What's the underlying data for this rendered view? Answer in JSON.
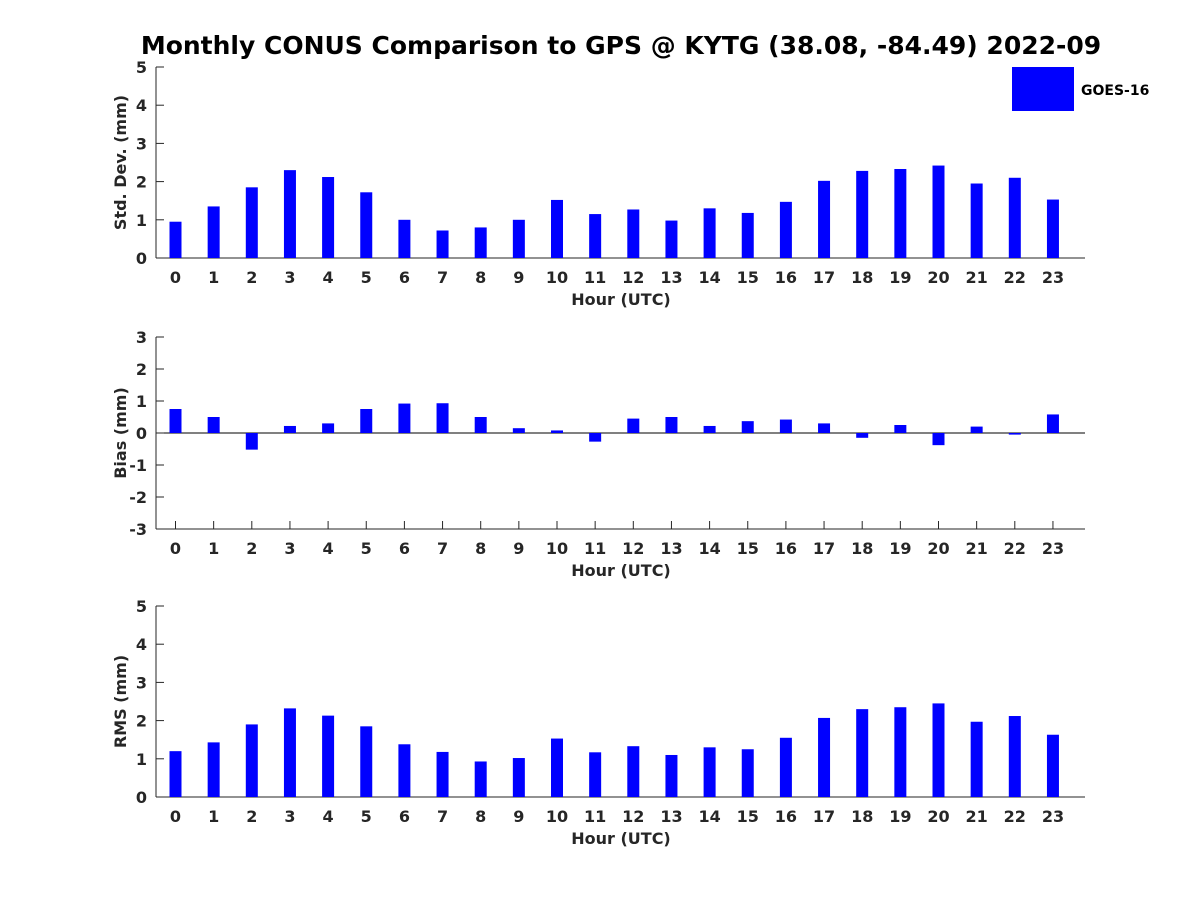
{
  "title": "Monthly CONUS Comparison to GPS @ KYTG (38.08, -84.49) 2022-09",
  "legend": {
    "label": "GOES-16",
    "color": "#0000ff",
    "position": "top-right"
  },
  "bar_color": "#0000ff",
  "chart_data": [
    {
      "type": "bar",
      "categories": [
        "0",
        "1",
        "2",
        "3",
        "4",
        "5",
        "6",
        "7",
        "8",
        "9",
        "10",
        "11",
        "12",
        "13",
        "14",
        "15",
        "16",
        "17",
        "18",
        "19",
        "20",
        "21",
        "22",
        "23"
      ],
      "series": [
        {
          "name": "GOES-16",
          "values": [
            0.95,
            1.35,
            1.85,
            2.3,
            2.12,
            1.72,
            1.0,
            0.72,
            0.8,
            1.0,
            1.52,
            1.15,
            1.27,
            0.98,
            1.3,
            1.18,
            1.47,
            2.02,
            2.28,
            2.33,
            2.42,
            1.95,
            2.1,
            1.53
          ]
        }
      ],
      "xlabel": "Hour (UTC)",
      "ylabel": "Std. Dev. (mm)",
      "ylim": [
        0,
        5
      ],
      "yticks": [
        "0",
        "1",
        "2",
        "3",
        "4",
        "5"
      ]
    },
    {
      "type": "bar",
      "categories": [
        "0",
        "1",
        "2",
        "3",
        "4",
        "5",
        "6",
        "7",
        "8",
        "9",
        "10",
        "11",
        "12",
        "13",
        "14",
        "15",
        "16",
        "17",
        "18",
        "19",
        "20",
        "21",
        "22",
        "23"
      ],
      "series": [
        {
          "name": "GOES-16",
          "values": [
            0.75,
            0.5,
            -0.52,
            0.22,
            0.3,
            0.75,
            0.92,
            0.93,
            0.5,
            0.15,
            0.08,
            -0.27,
            0.45,
            0.5,
            0.22,
            0.37,
            0.42,
            0.3,
            -0.15,
            0.25,
            -0.38,
            0.2,
            -0.05,
            0.58
          ]
        }
      ],
      "xlabel": "Hour (UTC)",
      "ylabel": "Bias (mm)",
      "ylim": [
        -3,
        3
      ],
      "yticks": [
        "-3",
        "-2",
        "-1",
        "0",
        "1",
        "2",
        "3"
      ]
    },
    {
      "type": "bar",
      "categories": [
        "0",
        "1",
        "2",
        "3",
        "4",
        "5",
        "6",
        "7",
        "8",
        "9",
        "10",
        "11",
        "12",
        "13",
        "14",
        "15",
        "16",
        "17",
        "18",
        "19",
        "20",
        "21",
        "22",
        "23"
      ],
      "series": [
        {
          "name": "GOES-16",
          "values": [
            1.2,
            1.43,
            1.9,
            2.32,
            2.13,
            1.85,
            1.38,
            1.18,
            0.93,
            1.02,
            1.53,
            1.17,
            1.33,
            1.1,
            1.3,
            1.25,
            1.55,
            2.07,
            2.3,
            2.35,
            2.45,
            1.97,
            2.12,
            1.63
          ]
        }
      ],
      "xlabel": "Hour (UTC)",
      "ylabel": "RMS (mm)",
      "ylim": [
        0,
        5
      ],
      "yticks": [
        "0",
        "1",
        "2",
        "3",
        "4",
        "5"
      ]
    }
  ]
}
